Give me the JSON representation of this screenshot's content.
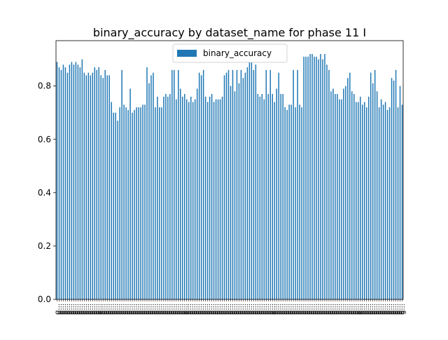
{
  "chart_data": {
    "type": "bar",
    "title": "binary_accuracy by dataset_name for phase 11 I",
    "xlabel": "",
    "ylabel": "",
    "ylim": [
      0,
      0.97
    ],
    "yticks": [
      "0.0",
      "0.2",
      "0.4",
      "0.6",
      "0.8"
    ],
    "legend": {
      "label": "binary_accuracy",
      "placement": "upper-center"
    },
    "colors": {
      "bar": "#1f77b4",
      "axes": "#000000",
      "background": "#ffffff"
    },
    "categories": [
      "g...",
      "g...",
      "g...",
      "g...",
      "g...",
      "g...",
      "g...",
      "g...",
      "g...",
      "g...",
      "g...",
      "g...",
      "g...",
      "g...",
      "g...",
      "g...",
      "g...",
      "g...",
      "g...",
      "g...",
      "g...",
      "g...",
      "g...",
      "g...",
      "g...",
      "g...",
      "g...",
      "g...",
      "g...",
      "g...",
      "g...",
      "g...",
      "g...",
      "g...",
      "g...",
      "g...",
      "g...",
      "g...",
      "g...",
      "g...",
      "g...",
      "g...",
      "g...",
      "g...",
      "g...",
      "g...",
      "g...",
      "g...",
      "g...",
      "g...",
      "g...",
      "g...",
      "g...",
      "g...",
      "g...",
      "g...",
      "g...",
      "g...",
      "g...",
      "g...",
      "g...",
      "g...",
      "g...",
      "g...",
      "g...",
      "g...",
      "g...",
      "g...",
      "g...",
      "g...",
      "g...",
      "g...",
      "g...",
      "g...",
      "g...",
      "g...",
      "g...",
      "g...",
      "g...",
      "g...",
      "g...",
      "g...",
      "g...",
      "g...",
      "g...",
      "g...",
      "g...",
      "g...",
      "g...",
      "g...",
      "g...",
      "g...",
      "g...",
      "g...",
      "g...",
      "g...",
      "g...",
      "g...",
      "g...",
      "g...",
      "g...",
      "g...",
      "g...",
      "g...",
      "g...",
      "g...",
      "g...",
      "g...",
      "g...",
      "g...",
      "g...",
      "g...",
      "g...",
      "g...",
      "g...",
      "g...",
      "g...",
      "g...",
      "g...",
      "g...",
      "g...",
      "g...",
      "g...",
      "g...",
      "g...",
      "g...",
      "g...",
      "g...",
      "g...",
      "g...",
      "g...",
      "g...",
      "g...",
      "g...",
      "g...",
      "g...",
      "g...",
      "g...",
      "g...",
      "g...",
      "g...",
      "g...",
      "g...",
      "g...",
      "g...",
      "g...",
      "g...",
      "g...",
      "g...",
      "g...",
      "g...",
      "g...",
      "g...",
      "g...",
      "g...",
      "g...",
      "g...",
      "g...",
      "g...",
      "g...",
      "g...",
      "g...",
      "g...",
      "g...",
      "g...",
      "g..."
    ],
    "values": [
      0.89,
      0.87,
      0.86,
      0.88,
      0.87,
      0.85,
      0.88,
      0.89,
      0.88,
      0.89,
      0.88,
      0.87,
      0.9,
      0.85,
      0.84,
      0.85,
      0.84,
      0.85,
      0.87,
      0.86,
      0.87,
      0.84,
      0.83,
      0.86,
      0.84,
      0.84,
      0.74,
      0.7,
      0.7,
      0.67,
      0.72,
      0.86,
      0.73,
      0.72,
      0.71,
      0.79,
      0.7,
      0.71,
      0.72,
      0.72,
      0.72,
      0.73,
      0.73,
      0.87,
      0.81,
      0.84,
      0.85,
      0.72,
      0.76,
      0.72,
      0.72,
      0.76,
      0.77,
      0.76,
      0.77,
      0.86,
      0.86,
      0.75,
      0.86,
      0.79,
      0.76,
      0.77,
      0.75,
      0.74,
      0.76,
      0.74,
      0.75,
      0.79,
      0.85,
      0.84,
      0.86,
      0.76,
      0.74,
      0.76,
      0.77,
      0.74,
      0.75,
      0.75,
      0.75,
      0.76,
      0.84,
      0.85,
      0.86,
      0.8,
      0.86,
      0.78,
      0.86,
      0.81,
      0.86,
      0.83,
      0.85,
      0.87,
      0.89,
      0.89,
      0.86,
      0.88,
      0.77,
      0.76,
      0.77,
      0.75,
      0.86,
      0.77,
      0.86,
      0.77,
      0.74,
      0.79,
      0.85,
      0.77,
      0.77,
      0.72,
      0.71,
      0.73,
      0.73,
      0.86,
      0.72,
      0.86,
      0.73,
      0.72,
      0.91,
      0.91,
      0.91,
      0.92,
      0.92,
      0.91,
      0.91,
      0.9,
      0.92,
      0.9,
      0.92,
      0.88,
      0.86,
      0.78,
      0.79,
      0.77,
      0.77,
      0.75,
      0.75,
      0.79,
      0.8,
      0.83,
      0.85,
      0.78,
      0.77,
      0.74,
      0.74,
      0.76,
      0.73,
      0.74,
      0.72,
      0.76,
      0.85,
      0.81,
      0.86,
      0.78,
      0.72,
      0.75,
      0.73,
      0.74,
      0.71,
      0.72,
      0.83,
      0.82,
      0.86,
      0.72,
      0.8,
      0.73
    ]
  }
}
